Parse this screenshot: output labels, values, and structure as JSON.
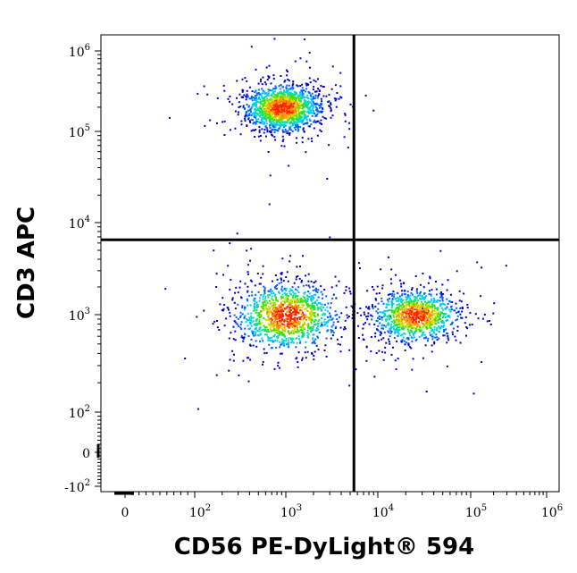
{
  "chart_data": {
    "type": "scatter",
    "subtype": "flow-cytometry density dot plot",
    "title": "",
    "xlabel": "CD56 PE-DyLight® 594",
    "ylabel": "CD3 APC",
    "x_scale": "biexponential (logicle)",
    "y_scale": "biexponential (logicle)",
    "xlim": [
      -300,
      1300000
    ],
    "ylim": [
      -200,
      1300000
    ],
    "x_ticks": [
      {
        "value": 0,
        "label": "0"
      },
      {
        "value": 100,
        "label": "10",
        "exp": "2"
      },
      {
        "value": 1000,
        "label": "10",
        "exp": "3"
      },
      {
        "value": 10000,
        "label": "10",
        "exp": "4"
      },
      {
        "value": 100000,
        "label": "10",
        "exp": "5"
      },
      {
        "value": 1000000,
        "label": "10",
        "exp": "6"
      }
    ],
    "y_ticks": [
      {
        "value": -100,
        "label": "-10",
        "exp": "2"
      },
      {
        "value": 0,
        "label": "0"
      },
      {
        "value": 100,
        "label": "10",
        "exp": "2"
      },
      {
        "value": 1000,
        "label": "10",
        "exp": "3"
      },
      {
        "value": 10000,
        "label": "10",
        "exp": "4"
      },
      {
        "value": 100000,
        "label": "10",
        "exp": "5"
      },
      {
        "value": 1000000,
        "label": "10",
        "exp": "6"
      }
    ],
    "quadrant_gates": {
      "x": 5500,
      "y": 6500
    },
    "density_colors": [
      "#0000c8",
      "#0060ff",
      "#00c8ff",
      "#00e0a0",
      "#40e000",
      "#d0e000",
      "#ff9000",
      "#ff2000"
    ],
    "populations": [
      {
        "x_center": 900,
        "y_center": 200000,
        "x_spread_decades": 0.2,
        "y_spread_decades": 0.14,
        "count": 1500
      },
      {
        "x_center": 1000,
        "y_center": 1000,
        "x_spread_decades": 0.27,
        "y_spread_decades": 0.17,
        "count": 1300
      },
      {
        "x_center": 25000,
        "y_center": 1000,
        "x_spread_decades": 0.22,
        "y_spread_decades": 0.13,
        "count": 1100
      }
    ],
    "grid": false,
    "legend": "none"
  }
}
